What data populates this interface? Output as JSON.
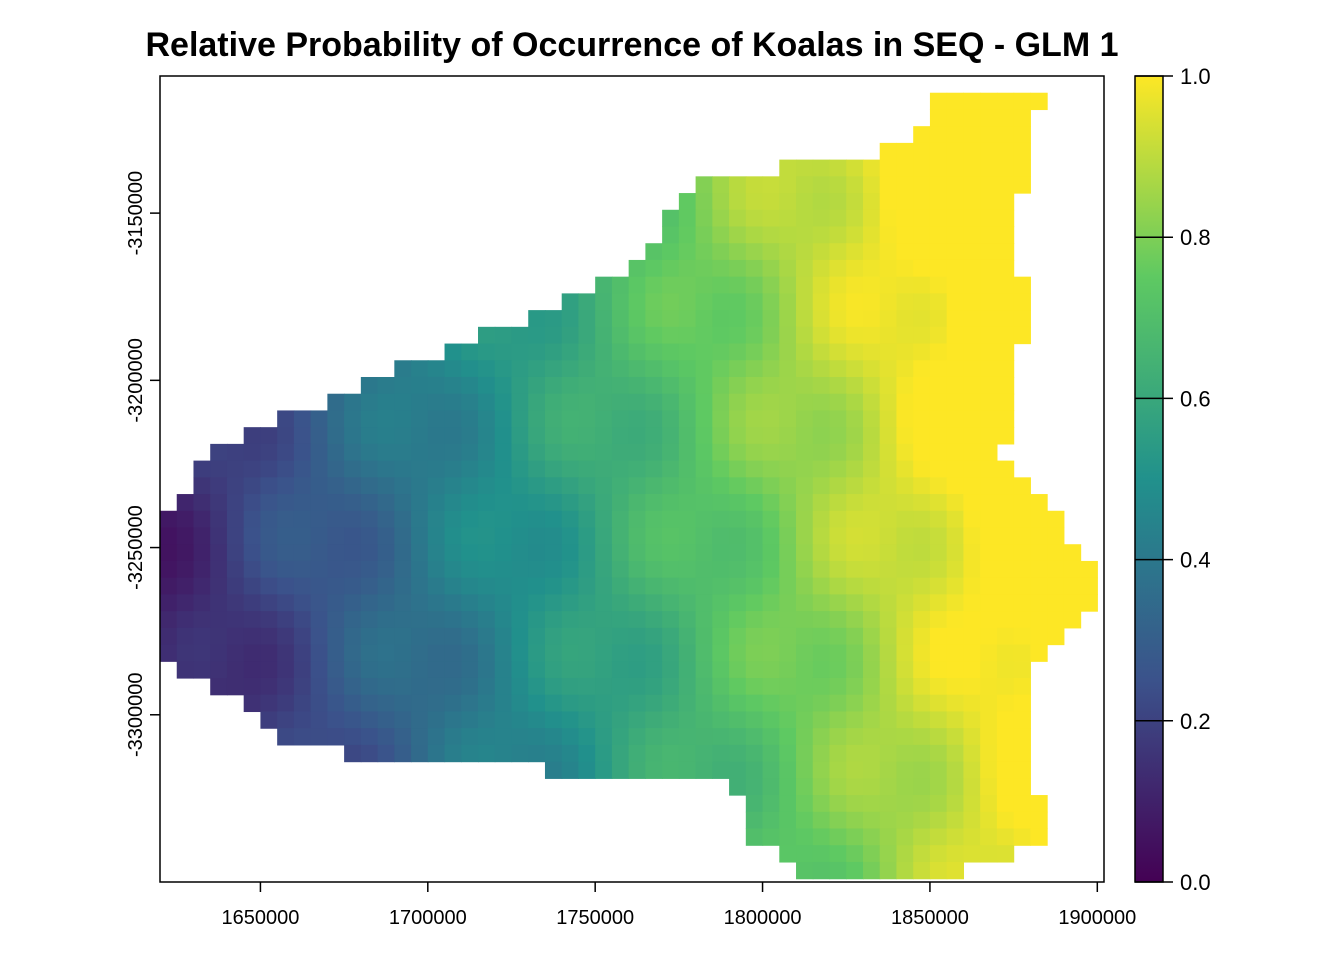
{
  "chart_data": {
    "type": "heatmap",
    "title": "Relative Probability of Occurrence of Koalas in SEQ - GLM 1",
    "xlabel": "",
    "ylabel": "",
    "x_ticks": [
      1650000,
      1700000,
      1750000,
      1800000,
      1850000,
      1900000
    ],
    "y_ticks": [
      -3150000,
      -3200000,
      -3250000,
      -3300000
    ],
    "xlim": [
      1620000,
      1902000
    ],
    "ylim": [
      -3350000,
      -3109000
    ],
    "colorbar": {
      "range": [
        0,
        1
      ],
      "ticks": [
        "0.0",
        "0.2",
        "0.4",
        "0.6",
        "0.8",
        "1.0"
      ],
      "palette": "viridis",
      "colors": [
        "#440154",
        "#3b528b",
        "#21918c",
        "#5ec962",
        "#fde725"
      ]
    },
    "grid": false,
    "legend": "right",
    "cell_size": 5000,
    "region": {
      "x": [
        [
          1620000,
          1660000,
          1700000,
          1740000,
          1790000,
          1830000,
          1860000,
          1890000,
          1902000
        ],
        [
          1620000,
          1650000,
          1690000,
          1735000,
          1780000,
          1830000,
          1870000,
          1880000,
          1895000
        ]
      ],
      "rows": [
        {
          "y": -3112000,
          "xmin": 1855000,
          "xmax": 1885000
        },
        {
          "y": -3130000,
          "xmin": 1845000,
          "xmax": 1880000
        },
        {
          "y": -3142000,
          "xmin": 1775000,
          "xmax": 1878000
        },
        {
          "y": -3160000,
          "xmin": 1770000,
          "xmax": 1875000
        },
        {
          "y": -3172000,
          "xmin": 1750000,
          "xmax": 1878000
        },
        {
          "y": -3185000,
          "xmin": 1720000,
          "xmax": 1878000
        },
        {
          "y": -3197000,
          "xmin": 1690000,
          "xmax": 1875000
        },
        {
          "y": -3210000,
          "xmin": 1660000,
          "xmax": 1878000
        },
        {
          "y": -3222000,
          "xmin": 1635000,
          "xmax": 1870000
        },
        {
          "y": -3235000,
          "xmin": 1625000,
          "xmax": 1885000
        },
        {
          "y": -3247000,
          "xmin": 1620000,
          "xmax": 1890000
        },
        {
          "y": -3260000,
          "xmin": 1620000,
          "xmax": 1902000
        },
        {
          "y": -3272000,
          "xmin": 1620000,
          "xmax": 1895000
        },
        {
          "y": -3285000,
          "xmin": 1620000,
          "xmax": 1880000
        },
        {
          "y": -3297000,
          "xmin": 1645000,
          "xmax": 1880000
        },
        {
          "y": -3310000,
          "xmin": 1660000,
          "xmax": 1880000
        },
        {
          "y": -3322000,
          "xmin": 1795000,
          "xmax": 1880000
        },
        {
          "y": -3335000,
          "xmin": 1795000,
          "xmax": 1890000
        },
        {
          "y": -3347000,
          "xmin": 1810000,
          "xmax": 1860000
        }
      ]
    }
  }
}
